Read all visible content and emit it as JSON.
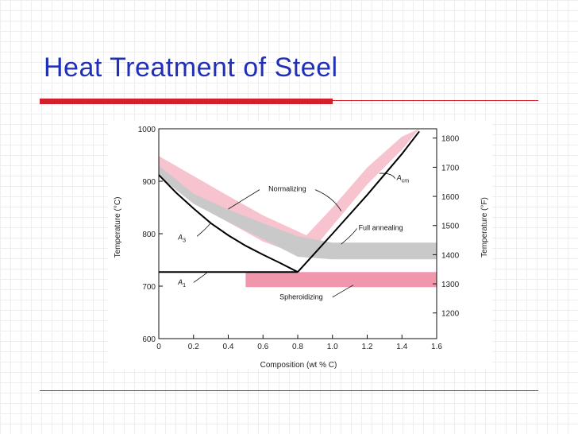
{
  "slide": {
    "title": "Heat Treatment of Steel"
  },
  "colors": {
    "title": "#1f2fb8",
    "rule": "#d4202a",
    "normalizing_band": "#f7c3cf",
    "annealing_band": "#c9c9c9",
    "spheroidizing_band": "#f097ad"
  },
  "chart_data": {
    "type": "line",
    "title": "",
    "xlabel": "Composition (wt % C)",
    "ylabel": "Temperature (°C)",
    "y2label": "Temperature (°F)",
    "xlim": [
      0,
      1.6
    ],
    "ylim": [
      600,
      1000
    ],
    "y2lim": [
      1112,
      1832
    ],
    "xticks": [
      0,
      0.2,
      0.4,
      0.6,
      0.8,
      1.0,
      1.2,
      1.4,
      1.6
    ],
    "xtick_labels": [
      "0",
      "0.2",
      "0.4",
      "0.6",
      "0.8",
      "1.0",
      "1.2",
      "1.4",
      "1.6"
    ],
    "yticks": [
      600,
      700,
      800,
      900,
      1000
    ],
    "ytick_labels": [
      "600",
      "700",
      "800",
      "900",
      "1000"
    ],
    "y2ticks": [
      1200,
      1300,
      1400,
      1500,
      1600,
      1700,
      1800
    ],
    "y2tick_labels": [
      "1200",
      "1300",
      "1400",
      "1500",
      "1600",
      "1700",
      "1800"
    ],
    "lines": [
      {
        "name": "A3",
        "x": [
          0,
          0.1,
          0.2,
          0.3,
          0.4,
          0.5,
          0.6,
          0.7,
          0.8
        ],
        "y": [
          912,
          878,
          848,
          820,
          797,
          777,
          760,
          744,
          727
        ]
      },
      {
        "name": "A1",
        "x": [
          0,
          0.8
        ],
        "y": [
          727,
          727
        ]
      },
      {
        "name": "Acm",
        "x": [
          0.8,
          1.0,
          1.2,
          1.4,
          1.5
        ],
        "y": [
          727,
          800,
          874,
          952,
          995
        ]
      }
    ],
    "bands": [
      {
        "name": "Normalizing",
        "x": [
          0,
          0.2,
          0.4,
          0.6,
          0.85,
          1.0,
          1.2,
          1.4,
          1.5
        ],
        "upper": [
          948,
          910,
          872,
          835,
          797,
          850,
          926,
          985,
          1000
        ],
        "lower": [
          912,
          862,
          822,
          785,
          755,
          815,
          894,
          960,
          1000
        ]
      },
      {
        "name": "Full annealing",
        "x": [
          0,
          0.2,
          0.4,
          0.6,
          0.8,
          1.0,
          1.6
        ],
        "upper": [
          930,
          876,
          846,
          820,
          795,
          783,
          783
        ],
        "lower": [
          910,
          857,
          822,
          790,
          756,
          751,
          751
        ]
      },
      {
        "name": "Spheroidizing",
        "x": [
          0.5,
          1.6
        ],
        "upper": [
          727,
          727
        ],
        "lower": [
          698,
          698
        ]
      }
    ],
    "annotations": [
      {
        "text": "Normalizing",
        "target": "Normalizing"
      },
      {
        "text": "Full annealing",
        "target": "Full annealing"
      },
      {
        "text": "Spheroidizing",
        "target": "Spheroidizing"
      },
      {
        "text": "A",
        "sub": "3",
        "target": "A3"
      },
      {
        "text": "A",
        "sub": "1",
        "target": "A1"
      },
      {
        "text": "A",
        "sub": "cm",
        "target": "Acm"
      }
    ],
    "grid": false,
    "legend": "none"
  }
}
